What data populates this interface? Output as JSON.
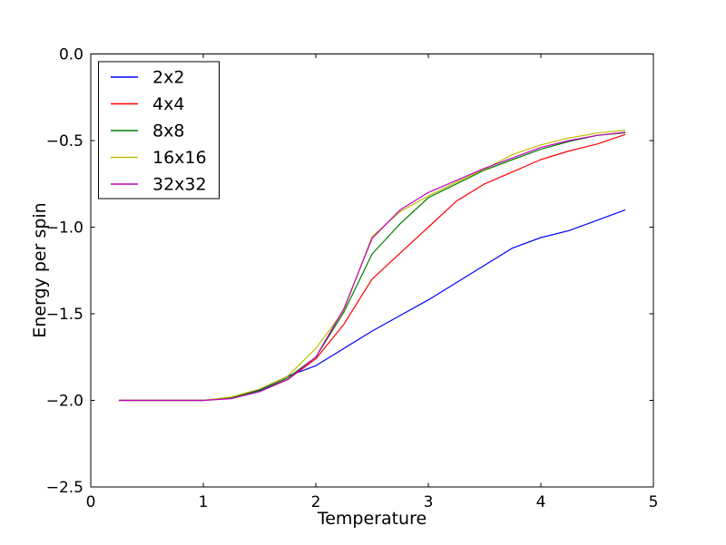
{
  "figure": {
    "background": "#ffffff",
    "frame_color": "#000000"
  },
  "chart_data": {
    "type": "line",
    "title": "",
    "xlabel": "Temperature",
    "ylabel": "Energy per spin",
    "xlim": [
      0,
      5
    ],
    "ylim": [
      -2.5,
      0.0
    ],
    "grid": false,
    "legend_position": "upper-left",
    "x_ticks": [
      0,
      1,
      2,
      3,
      4,
      5
    ],
    "x_tick_labels": [
      "0",
      "1",
      "2",
      "3",
      "4",
      "5"
    ],
    "y_ticks": [
      0.0,
      -0.5,
      -1.0,
      -1.5,
      -2.0,
      -2.5
    ],
    "y_tick_labels": [
      "0.0",
      "−0.5",
      "−1.0",
      "−1.5",
      "−2.0",
      "−2.5"
    ],
    "x": [
      0.25,
      0.5,
      0.75,
      1.0,
      1.25,
      1.5,
      1.75,
      2.0,
      2.25,
      2.5,
      2.75,
      3.0,
      3.25,
      3.5,
      3.75,
      4.0,
      4.25,
      4.5,
      4.75
    ],
    "series": [
      {
        "name": "2x2",
        "color": "#0000ff",
        "values": [
          -2.0,
          -2.0,
          -2.0,
          -2.0,
          -1.985,
          -1.94,
          -1.86,
          -1.8,
          -1.7,
          -1.6,
          -1.51,
          -1.42,
          -1.32,
          -1.22,
          -1.12,
          -1.06,
          -1.02,
          -0.96,
          -0.9
        ]
      },
      {
        "name": "4x4",
        "color": "#ff0000",
        "values": [
          -2.0,
          -2.0,
          -2.0,
          -2.0,
          -1.985,
          -1.945,
          -1.88,
          -1.76,
          -1.56,
          -1.3,
          -1.15,
          -1.0,
          -0.85,
          -0.75,
          -0.68,
          -0.61,
          -0.56,
          -0.52,
          -0.465
        ]
      },
      {
        "name": "8x8",
        "color": "#007f00",
        "values": [
          -2.0,
          -2.0,
          -2.0,
          -2.0,
          -1.985,
          -1.945,
          -1.87,
          -1.75,
          -1.49,
          -1.155,
          -0.98,
          -0.83,
          -0.75,
          -0.67,
          -0.61,
          -0.55,
          -0.505,
          -0.47,
          -0.455
        ]
      },
      {
        "name": "16x16",
        "color": "#bfbf00",
        "values": [
          -2.0,
          -2.0,
          -2.0,
          -2.0,
          -1.98,
          -1.935,
          -1.86,
          -1.7,
          -1.48,
          -1.055,
          -0.91,
          -0.82,
          -0.74,
          -0.665,
          -0.58,
          -0.525,
          -0.485,
          -0.457,
          -0.44
        ]
      },
      {
        "name": "32x32",
        "color": "#bf00bf",
        "values": [
          -2.0,
          -2.0,
          -2.0,
          -2.0,
          -1.99,
          -1.95,
          -1.88,
          -1.75,
          -1.47,
          -1.065,
          -0.9,
          -0.8,
          -0.73,
          -0.66,
          -0.6,
          -0.54,
          -0.5,
          -0.47,
          -0.452
        ]
      }
    ]
  }
}
